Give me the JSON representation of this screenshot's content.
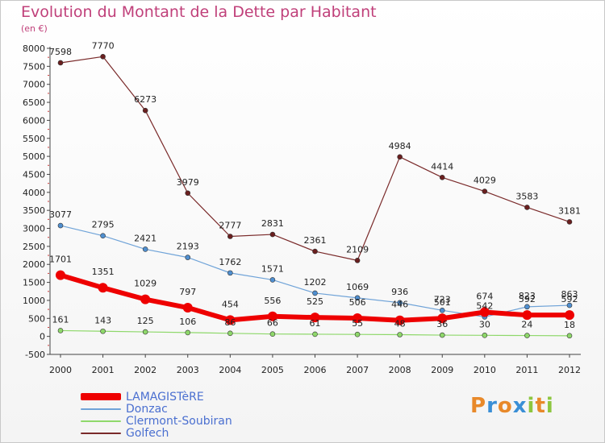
{
  "header": {
    "title": "Evolution du Montant de la Dette par Habitant",
    "subtitle": "(en €)"
  },
  "logo": {
    "text": "Proxiti",
    "letters": [
      {
        "ch": "P",
        "color": "#e8892a"
      },
      {
        "ch": "r",
        "color": "#3a8fd6"
      },
      {
        "ch": "o",
        "color": "#e8892a"
      },
      {
        "ch": "x",
        "color": "#3a8fd6"
      },
      {
        "ch": "i",
        "color": "#8dc63f"
      },
      {
        "ch": "t",
        "color": "#e8892a"
      },
      {
        "ch": "i",
        "color": "#8dc63f"
      }
    ]
  },
  "chart_data": {
    "type": "line",
    "title": "Evolution du Montant de la Dette par Habitant",
    "subtitle": "(en €)",
    "x": [
      "2000",
      "2001",
      "2002",
      "2003",
      "2004",
      "2005",
      "2006",
      "2007",
      "2008",
      "2009",
      "2010",
      "2011",
      "2012"
    ],
    "ylim": [
      -500,
      8000
    ],
    "yticks": [
      -500,
      0,
      500,
      1000,
      1500,
      2000,
      2500,
      3000,
      3500,
      4000,
      4500,
      5000,
      5500,
      6000,
      6500,
      7000,
      7500,
      8000
    ],
    "grid": false,
    "legend_position": "bottom-left",
    "series": [
      {
        "name": "LAMAGISTèRE",
        "color": "#ee0000",
        "values": [
          1701,
          1351,
          1029,
          797,
          454,
          556,
          525,
          506,
          446,
          501,
          674,
          592,
          592
        ]
      },
      {
        "name": "Donzac",
        "color": "#6fa3d8",
        "values": [
          3077,
          2795,
          2421,
          2193,
          1762,
          1571,
          1202,
          1069,
          936,
          723,
          542,
          823,
          863
        ]
      },
      {
        "name": "Clermont-Soubiran",
        "color": "#8ed86a",
        "values": [
          161,
          143,
          125,
          106,
          86,
          66,
          61,
          55,
          48,
          36,
          30,
          24,
          18
        ]
      },
      {
        "name": "Golfech",
        "color": "#7a2a2a",
        "values": [
          7598,
          7770,
          6273,
          3979,
          2777,
          2831,
          2361,
          2109,
          4984,
          4414,
          4029,
          3583,
          3181
        ]
      }
    ]
  }
}
